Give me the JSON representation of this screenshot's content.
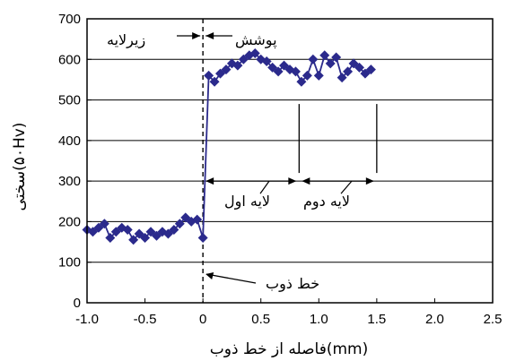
{
  "chart_data": {
    "type": "line",
    "xlabel": "فاصله از خط ذوب(mm)",
    "ylabel": "سختی(۵۰Hv)",
    "xlim": [
      -1.0,
      2.5
    ],
    "ylim": [
      0,
      700
    ],
    "x_ticks": [
      "-1.0",
      "-0.5",
      "0",
      "0.5",
      "1.0",
      "1.5",
      "2.0",
      "2.5"
    ],
    "y_ticks": [
      "0",
      "100",
      "200",
      "300",
      "400",
      "500",
      "600",
      "700"
    ],
    "grid": "horizontal",
    "line_color": "#2b2a8c",
    "marker": "diamond",
    "series": [
      {
        "x": [
          -1.0,
          -0.95,
          -0.9,
          -0.85,
          -0.8,
          -0.75,
          -0.7,
          -0.65,
          -0.6,
          -0.55,
          -0.5,
          -0.45,
          -0.4,
          -0.35,
          -0.3,
          -0.25,
          -0.2,
          -0.15,
          -0.1,
          -0.05,
          0.0,
          0.05,
          0.1,
          0.15,
          0.2,
          0.25,
          0.3,
          0.35,
          0.4,
          0.45,
          0.5,
          0.55,
          0.6,
          0.65,
          0.7,
          0.75,
          0.8,
          0.85,
          0.9,
          0.95,
          1.0,
          1.05,
          1.1,
          1.15,
          1.2,
          1.25,
          1.3,
          1.35,
          1.4,
          1.45
        ],
        "values": [
          180,
          175,
          185,
          195,
          160,
          175,
          185,
          180,
          155,
          170,
          160,
          175,
          165,
          175,
          170,
          180,
          195,
          210,
          200,
          205,
          160,
          560,
          545,
          565,
          575,
          590,
          585,
          600,
          610,
          615,
          600,
          595,
          580,
          570,
          585,
          575,
          570,
          545,
          560,
          600,
          560,
          610,
          590,
          605,
          555,
          570,
          590,
          580,
          565,
          575
        ]
      }
    ],
    "annotations": {
      "substrate": "زیرلایه",
      "coating": "پوشش",
      "fusion_line": "خط ذوب",
      "layer1": "لایه اول",
      "layer2": "لایه دوم"
    }
  }
}
